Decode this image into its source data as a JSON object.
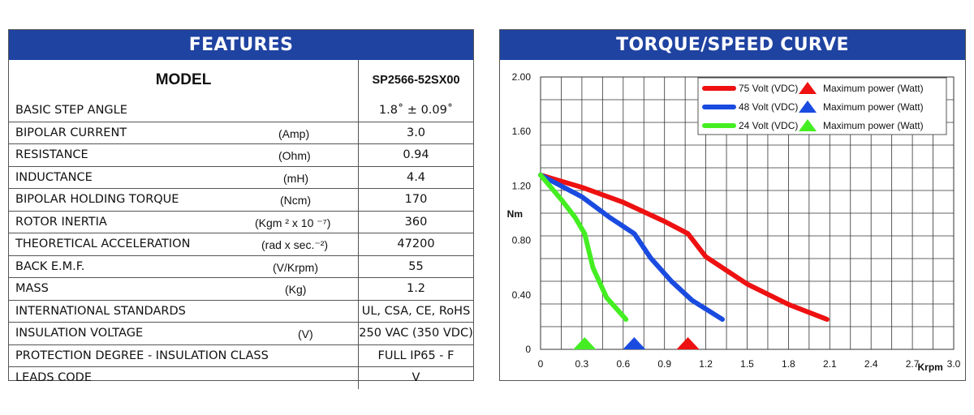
{
  "features": {
    "header": "FEATURES",
    "model_label": "MODEL",
    "model_value": "SP2566-52SX00",
    "rows": [
      {
        "param": "BASIC STEP ANGLE",
        "unit": "",
        "value": "1.8˚ ± 0.09˚"
      },
      {
        "param": "BIPOLAR CURRENT",
        "unit": "(Amp)",
        "value": "3.0"
      },
      {
        "param": "RESISTANCE",
        "unit": "(Ohm)",
        "value": "0.94"
      },
      {
        "param": "INDUCTANCE",
        "unit": "(mH)",
        "value": "4.4"
      },
      {
        "param": "BIPOLAR HOLDING TORQUE",
        "unit": "(Ncm)",
        "value": "170"
      },
      {
        "param": "ROTOR INERTIA",
        "unit": "(Kgm ² x 10 ⁻⁷)",
        "value": "360"
      },
      {
        "param": "THEORETICAL ACCELERATION",
        "unit": "(rad x sec.⁻²)",
        "value": "47200"
      },
      {
        "param": "BACK E.M.F.",
        "unit": "(V/Krpm)",
        "value": "55"
      },
      {
        "param": "MASS",
        "unit": "(Kg)",
        "value": "1.2"
      },
      {
        "param": "INTERNATIONAL STANDARDS",
        "unit": "",
        "value": "UL, CSA, CE, RoHS"
      },
      {
        "param": "INSULATION VOLTAGE",
        "unit": "(V)",
        "value": "250 VAC (350 VDC)"
      },
      {
        "param": "PROTECTION DEGREE - INSULATION CLASS",
        "unit": "",
        "value": "FULL IP65 - F"
      },
      {
        "param": "LEADS CODE",
        "unit": "",
        "value": "V"
      }
    ]
  },
  "curve": {
    "header": "TORQUE/SPEED CURVE"
  },
  "chart_data": {
    "type": "line",
    "title": "",
    "xlabel": "Krpm",
    "ylabel": "Nm",
    "xlim": [
      0,
      3.0
    ],
    "ylim": [
      0,
      2.0
    ],
    "x_ticks": [
      "0",
      "0.3",
      "0.6",
      "0.9",
      "1.2",
      "1.5",
      "1.8",
      "2.1",
      "2.4",
      "2.7",
      "3.0"
    ],
    "y_ticks": [
      "0",
      "0.40",
      "0.80",
      "1.20",
      "1.60",
      "2.00"
    ],
    "grid": true,
    "legend_position": "top-right",
    "series": [
      {
        "name": "75 Volt (VDC)",
        "color": "#ee1111",
        "x": [
          0,
          0.3,
          0.6,
          0.9,
          1.07,
          1.2,
          1.5,
          1.8,
          2.08
        ],
        "y": [
          1.28,
          1.19,
          1.08,
          0.94,
          0.85,
          0.68,
          0.48,
          0.33,
          0.22
        ],
        "max_power_marker": {
          "label": "Maximum power (Watt)",
          "x": 1.07
        }
      },
      {
        "name": "48 Volt (VDC)",
        "color": "#1a4be0",
        "x": [
          0,
          0.3,
          0.5,
          0.68,
          0.8,
          0.95,
          1.1,
          1.32
        ],
        "y": [
          1.28,
          1.12,
          0.97,
          0.85,
          0.67,
          0.5,
          0.36,
          0.22
        ],
        "max_power_marker": {
          "label": "Maximum power (Watt)",
          "x": 0.68
        }
      },
      {
        "name": "24 Volt (VDC)",
        "color": "#44ee22",
        "x": [
          0,
          0.15,
          0.25,
          0.32,
          0.38,
          0.48,
          0.62
        ],
        "y": [
          1.28,
          1.1,
          0.97,
          0.85,
          0.6,
          0.38,
          0.22
        ],
        "max_power_marker": {
          "label": "Maximum power (Watt)",
          "x": 0.32
        }
      }
    ]
  }
}
